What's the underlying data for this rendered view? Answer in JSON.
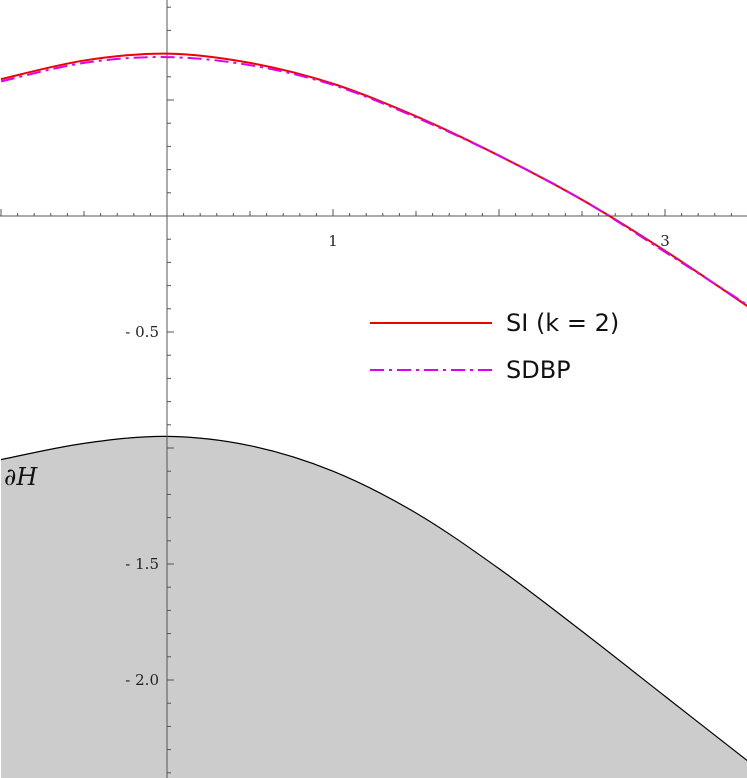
{
  "chart_data": {
    "type": "line",
    "title": "",
    "xlabel": "",
    "ylabel": "",
    "xlim": [
      -1.0,
      3.5
    ],
    "ylim": [
      -2.5,
      0.95
    ],
    "x_ticks": [
      {
        "value": 1,
        "label": "1"
      },
      {
        "value": 3,
        "label": "3"
      }
    ],
    "y_ticks": [
      {
        "value": -0.5,
        "label": "- 0.5"
      },
      {
        "value": -1.5,
        "label": "- 1.5"
      },
      {
        "value": -2.0,
        "label": "- 2.0"
      }
    ],
    "grid": false,
    "legend_position": "center-right",
    "series": [
      {
        "name": "SI (k = 2)",
        "color": "#ee0000",
        "style": "solid",
        "x": [
          -1.0,
          -0.5,
          0.0,
          0.5,
          1.0,
          1.5,
          2.0,
          2.5,
          3.0,
          3.5
        ],
        "y": [
          0.59,
          0.67,
          0.7,
          0.66,
          0.57,
          0.43,
          0.26,
          0.07,
          -0.15,
          -0.39
        ]
      },
      {
        "name": "SDBP",
        "color": "#dd00ee",
        "style": "dashdot",
        "x": [
          -1.0,
          -0.5,
          0.0,
          0.5,
          1.0,
          1.5,
          2.0,
          2.5,
          3.0,
          3.5
        ],
        "y": [
          0.58,
          0.66,
          0.685,
          0.65,
          0.565,
          0.425,
          0.26,
          0.07,
          -0.155,
          -0.385
        ]
      }
    ],
    "region": {
      "label": "∂H",
      "fill": "#cccccc",
      "boundary_x": [
        -1.0,
        -0.5,
        0.0,
        0.5,
        1.0,
        1.5,
        2.0,
        2.5,
        3.0,
        3.5
      ],
      "boundary_y": [
        -1.05,
        -0.98,
        -0.95,
        -0.99,
        -1.1,
        -1.28,
        -1.52,
        -1.79,
        -2.07,
        -2.35
      ]
    }
  }
}
